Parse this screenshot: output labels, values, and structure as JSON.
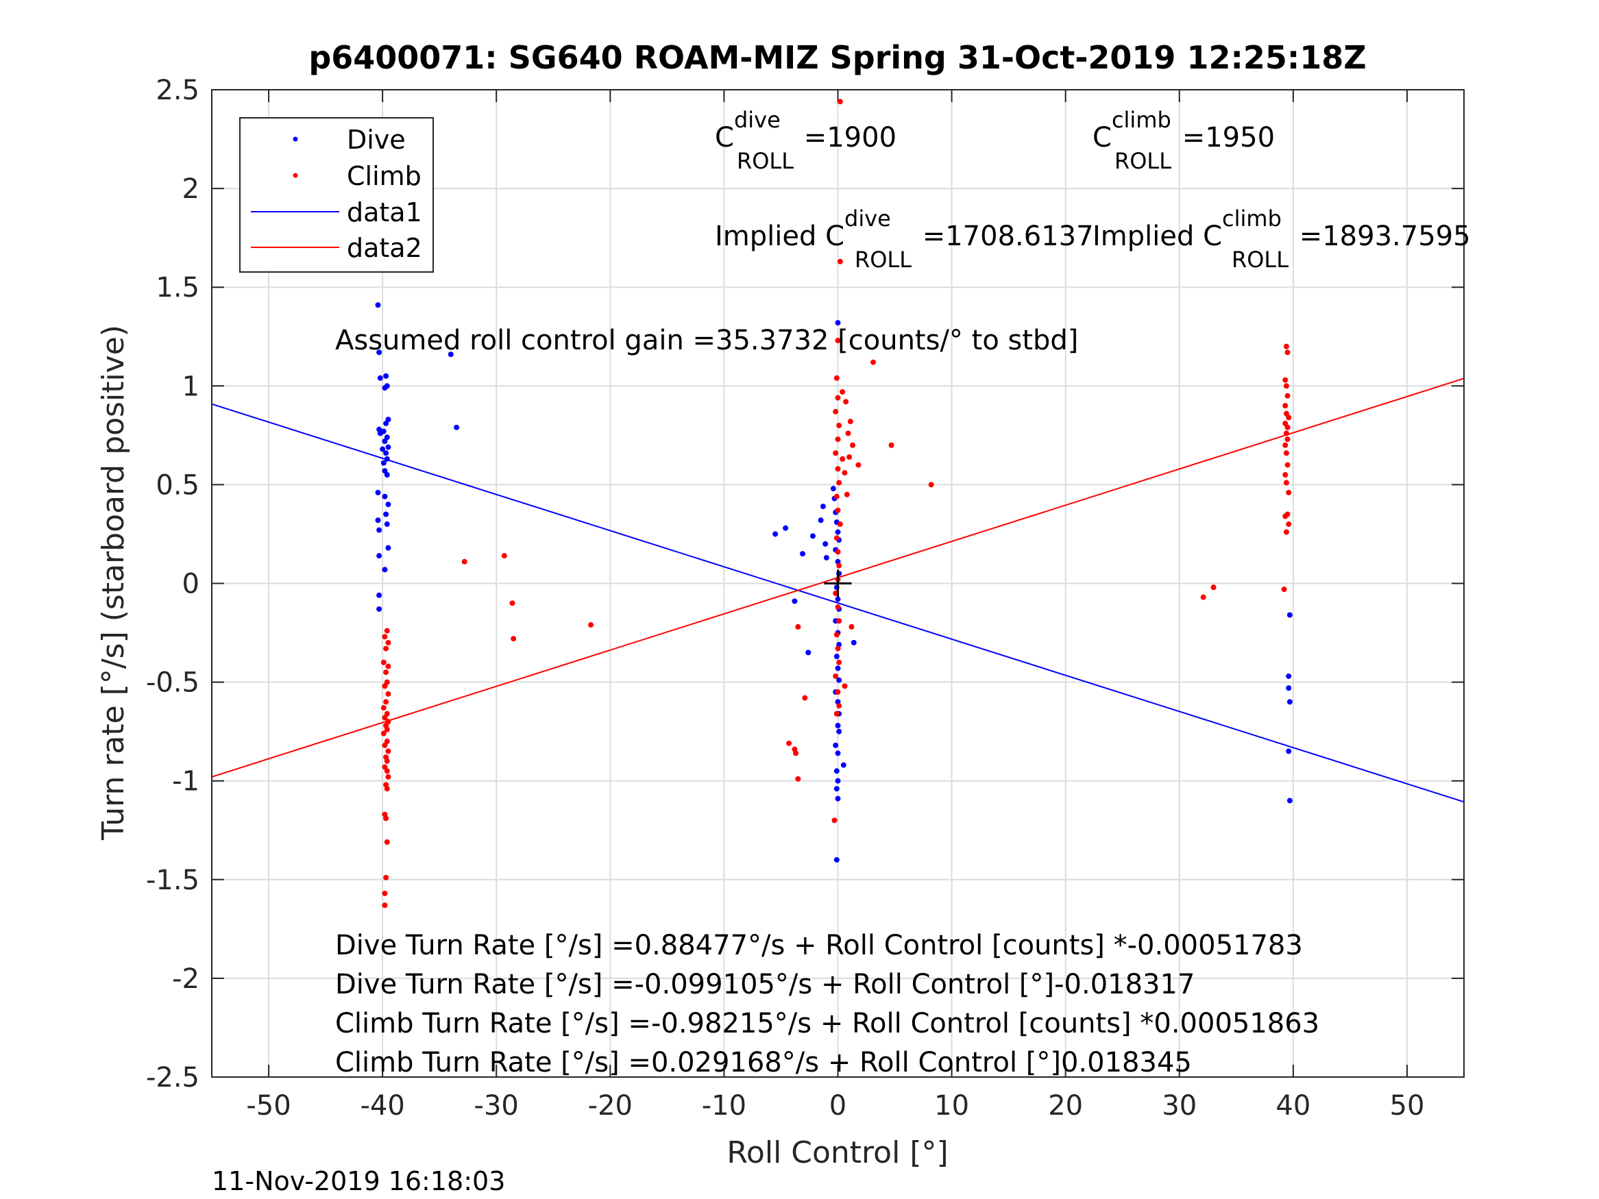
{
  "chart_data": {
    "type": "scatter",
    "title": "p6400071: SG640 ROAM-MIZ Spring 31-Oct-2019 12:25:18Z",
    "xlabel": "Roll Control [°]",
    "ylabel": "Turn rate [°/s] (starboard positive)",
    "xlim": [
      -55,
      55
    ],
    "ylim": [
      -2.5,
      2.5
    ],
    "xticks": [
      -50,
      -40,
      -30,
      -20,
      -10,
      0,
      10,
      20,
      30,
      40,
      50
    ],
    "yticks": [
      -2.5,
      -2,
      -1.5,
      -1,
      -0.5,
      0,
      0.5,
      1,
      1.5,
      2,
      2.5
    ],
    "xtick_labels": [
      "-50",
      "-40",
      "-30",
      "-20",
      "-10",
      "0",
      "10",
      "20",
      "30",
      "40",
      "50"
    ],
    "ytick_labels": [
      "-2.5",
      "-2",
      "-1.5",
      "-1",
      "-0.5",
      "0",
      "0.5",
      "1",
      "1.5",
      "2",
      "2.5"
    ],
    "grid": true,
    "legend_position": "top-left",
    "colors": {
      "dive": "#0000ff",
      "climb": "#ff0000",
      "marker": "#000000"
    },
    "series": [
      {
        "name": "Dive",
        "kind": "points",
        "color": "#0000ff",
        "points": [
          [
            -40.4,
            1.41
          ],
          [
            -40.3,
            1.17
          ],
          [
            -40.2,
            1.04
          ],
          [
            -39.7,
            1.05
          ],
          [
            -39.8,
            0.99
          ],
          [
            -39.6,
            1.0
          ],
          [
            -39.5,
            0.83
          ],
          [
            -39.7,
            0.81
          ],
          [
            -39.9,
            0.77
          ],
          [
            -40.3,
            0.78
          ],
          [
            -40.2,
            0.76
          ],
          [
            -39.6,
            0.74
          ],
          [
            -39.8,
            0.72
          ],
          [
            -39.5,
            0.69
          ],
          [
            -40.0,
            0.68
          ],
          [
            -39.7,
            0.66
          ],
          [
            -39.6,
            0.63
          ],
          [
            -39.9,
            0.61
          ],
          [
            -39.8,
            0.57
          ],
          [
            -39.6,
            0.55
          ],
          [
            -40.4,
            0.46
          ],
          [
            -39.8,
            0.44
          ],
          [
            -39.5,
            0.4
          ],
          [
            -39.7,
            0.35
          ],
          [
            -40.4,
            0.32
          ],
          [
            -39.6,
            0.3
          ],
          [
            -40.3,
            0.27
          ],
          [
            -39.5,
            0.18
          ],
          [
            -40.3,
            0.14
          ],
          [
            -39.8,
            0.07
          ],
          [
            -40.3,
            -0.06
          ],
          [
            -40.3,
            -0.13
          ],
          [
            -34.0,
            1.16
          ],
          [
            -33.5,
            0.79
          ],
          [
            -5.5,
            0.25
          ],
          [
            -4.6,
            0.28
          ],
          [
            -3.1,
            0.15
          ],
          [
            -2.2,
            0.24
          ],
          [
            -1.5,
            0.32
          ],
          [
            -1.3,
            0.39
          ],
          [
            -1.1,
            0.2
          ],
          [
            -1.0,
            0.13
          ],
          [
            -0.4,
            0.48
          ],
          [
            -0.3,
            0.43
          ],
          [
            -0.2,
            0.36
          ],
          [
            -0.1,
            0.31
          ],
          [
            0.0,
            0.26
          ],
          [
            0.1,
            0.22
          ],
          [
            -0.2,
            0.17
          ],
          [
            0.0,
            0.11
          ],
          [
            0.1,
            0.05
          ],
          [
            -0.1,
            -0.02
          ],
          [
            0.0,
            -0.08
          ],
          [
            0.1,
            -0.13
          ],
          [
            -0.2,
            -0.19
          ],
          [
            0.0,
            -0.25
          ],
          [
            0.1,
            -0.31
          ],
          [
            -0.1,
            -0.37
          ],
          [
            0.0,
            -0.43
          ],
          [
            0.1,
            -0.49
          ],
          [
            -0.2,
            -0.55
          ],
          [
            0.0,
            -0.6
          ],
          [
            0.1,
            -0.66
          ],
          [
            0.0,
            -0.72
          ],
          [
            0.1,
            -0.75
          ],
          [
            -0.2,
            -0.82
          ],
          [
            0.0,
            -0.86
          ],
          [
            -0.1,
            -0.95
          ],
          [
            0.0,
            -1.0
          ],
          [
            -0.1,
            -1.04
          ],
          [
            0.0,
            -1.09
          ],
          [
            -0.1,
            -1.4
          ],
          [
            0.0,
            1.32
          ],
          [
            -3.8,
            -0.09
          ],
          [
            -2.6,
            -0.35
          ],
          [
            1.4,
            -0.3
          ],
          [
            0.5,
            -0.92
          ],
          [
            39.7,
            -0.16
          ],
          [
            39.6,
            -0.47
          ],
          [
            39.6,
            -0.53
          ],
          [
            39.7,
            -0.6
          ],
          [
            39.6,
            -0.85
          ],
          [
            39.7,
            -1.1
          ]
        ]
      },
      {
        "name": "Climb",
        "kind": "points",
        "color": "#ff0000",
        "points": [
          [
            -39.6,
            -0.24
          ],
          [
            -39.8,
            -0.27
          ],
          [
            -39.5,
            -0.3
          ],
          [
            -39.7,
            -0.33
          ],
          [
            -39.9,
            -0.4
          ],
          [
            -39.5,
            -0.42
          ],
          [
            -39.7,
            -0.45
          ],
          [
            -39.6,
            -0.5
          ],
          [
            -39.8,
            -0.52
          ],
          [
            -39.5,
            -0.56
          ],
          [
            -39.7,
            -0.6
          ],
          [
            -39.9,
            -0.63
          ],
          [
            -39.6,
            -0.66
          ],
          [
            -39.8,
            -0.68
          ],
          [
            -39.5,
            -0.7
          ],
          [
            -39.7,
            -0.72
          ],
          [
            -39.6,
            -0.74
          ],
          [
            -39.9,
            -0.76
          ],
          [
            -39.6,
            -0.8
          ],
          [
            -39.8,
            -0.82
          ],
          [
            -39.5,
            -0.85
          ],
          [
            -39.7,
            -0.88
          ],
          [
            -39.6,
            -0.9
          ],
          [
            -39.8,
            -0.93
          ],
          [
            -39.6,
            -0.95
          ],
          [
            -39.5,
            -0.98
          ],
          [
            -39.7,
            -1.02
          ],
          [
            -39.6,
            -1.04
          ],
          [
            -39.8,
            -1.17
          ],
          [
            -39.7,
            -1.19
          ],
          [
            -39.6,
            -1.31
          ],
          [
            -39.7,
            -1.49
          ],
          [
            -39.8,
            -1.57
          ],
          [
            -39.8,
            -1.63
          ],
          [
            -32.8,
            0.11
          ],
          [
            -29.3,
            0.14
          ],
          [
            -28.6,
            -0.1
          ],
          [
            -28.5,
            -0.28
          ],
          [
            -21.7,
            -0.21
          ],
          [
            -4.3,
            -0.81
          ],
          [
            -3.8,
            -0.84
          ],
          [
            -3.7,
            -0.86
          ],
          [
            -3.5,
            -0.99
          ],
          [
            -3.5,
            -0.22
          ],
          [
            -2.9,
            -0.58
          ],
          [
            0.2,
            2.44
          ],
          [
            0.2,
            1.63
          ],
          [
            0.0,
            1.23
          ],
          [
            -0.1,
            1.04
          ],
          [
            0.0,
            0.94
          ],
          [
            -0.2,
            0.87
          ],
          [
            0.1,
            0.8
          ],
          [
            0.0,
            0.73
          ],
          [
            -0.2,
            0.66
          ],
          [
            0.0,
            0.58
          ],
          [
            0.1,
            0.51
          ],
          [
            -0.1,
            0.44
          ],
          [
            0.0,
            0.37
          ],
          [
            0.2,
            0.3
          ],
          [
            -0.1,
            0.23
          ],
          [
            0.0,
            0.16
          ],
          [
            0.1,
            0.09
          ],
          [
            0.0,
            0.02
          ],
          [
            -0.2,
            -0.05
          ],
          [
            0.0,
            -0.12
          ],
          [
            0.1,
            -0.19
          ],
          [
            -0.1,
            -0.26
          ],
          [
            0.0,
            -0.33
          ],
          [
            0.1,
            -0.4
          ],
          [
            -0.2,
            -0.47
          ],
          [
            0.0,
            -0.55
          ],
          [
            0.1,
            -0.62
          ],
          [
            -0.1,
            -0.66
          ],
          [
            -0.3,
            -1.2
          ],
          [
            0.4,
            0.97
          ],
          [
            0.7,
            0.92
          ],
          [
            0.9,
            0.76
          ],
          [
            1.1,
            0.82
          ],
          [
            0.4,
            0.63
          ],
          [
            0.6,
            0.56
          ],
          [
            0.8,
            0.45
          ],
          [
            1.0,
            0.64
          ],
          [
            1.3,
            0.7
          ],
          [
            1.8,
            0.6
          ],
          [
            3.1,
            1.12
          ],
          [
            4.7,
            0.7
          ],
          [
            8.2,
            0.5
          ],
          [
            1.2,
            -0.22
          ],
          [
            0.6,
            -0.52
          ],
          [
            39.4,
            1.2
          ],
          [
            39.5,
            1.17
          ],
          [
            39.3,
            1.03
          ],
          [
            39.4,
            1.0
          ],
          [
            39.5,
            0.95
          ],
          [
            39.3,
            0.9
          ],
          [
            39.4,
            0.86
          ],
          [
            39.6,
            0.84
          ],
          [
            39.3,
            0.81
          ],
          [
            39.5,
            0.79
          ],
          [
            39.4,
            0.76
          ],
          [
            39.5,
            0.73
          ],
          [
            39.3,
            0.7
          ],
          [
            39.4,
            0.66
          ],
          [
            39.5,
            0.6
          ],
          [
            39.3,
            0.55
          ],
          [
            39.4,
            0.51
          ],
          [
            39.6,
            0.46
          ],
          [
            39.5,
            0.35
          ],
          [
            39.3,
            0.34
          ],
          [
            39.6,
            0.3
          ],
          [
            39.4,
            0.26
          ],
          [
            39.2,
            -0.03
          ],
          [
            32.1,
            -0.07
          ],
          [
            33.0,
            -0.02
          ]
        ]
      },
      {
        "name": "data1",
        "kind": "line",
        "color": "#0000ff",
        "intercept": -0.099105,
        "slope": -0.018317
      },
      {
        "name": "data2",
        "kind": "line",
        "color": "#ff0000",
        "intercept": 0.029168,
        "slope": 0.018345
      }
    ],
    "annotations": {
      "c_roll_dive_base": "C",
      "c_roll_dive_sup": "dive",
      "c_roll_dive_sub": "ROLL",
      "c_roll_dive_value": " =1900",
      "c_roll_climb_base": "C",
      "c_roll_climb_sup": "climb",
      "c_roll_climb_sub": "ROLL",
      "c_roll_climb_value": " =1950",
      "implied_dive_base": "Implied C",
      "implied_dive_sup": "dive",
      "implied_dive_sub": "ROLL",
      "implied_dive_value": " =1708.6137",
      "implied_climb_base": "Implied C",
      "implied_climb_sup": "climb",
      "implied_climb_sub": "ROLL",
      "implied_climb_value": " =1893.7595",
      "gain": "Assumed roll control gain =35.3732 [counts/° to stbd]",
      "eq1": "Dive Turn Rate [°/s] =0.88477°/s + Roll Control [counts] *-0.00051783",
      "eq2": "Dive Turn Rate [°/s] =-0.099105°/s + Roll Control [°]-0.018317",
      "eq3": "Climb Turn Rate [°/s] =-0.98215°/s + Roll Control [counts] *0.00051863",
      "eq4": "Climb Turn Rate [°/s] =0.029168°/s + Roll Control [°]0.018345"
    },
    "marker": {
      "x": 0,
      "y": 0,
      "symbol": "+"
    }
  },
  "footer": {
    "timestamp": "11-Nov-2019 16:18:03"
  }
}
